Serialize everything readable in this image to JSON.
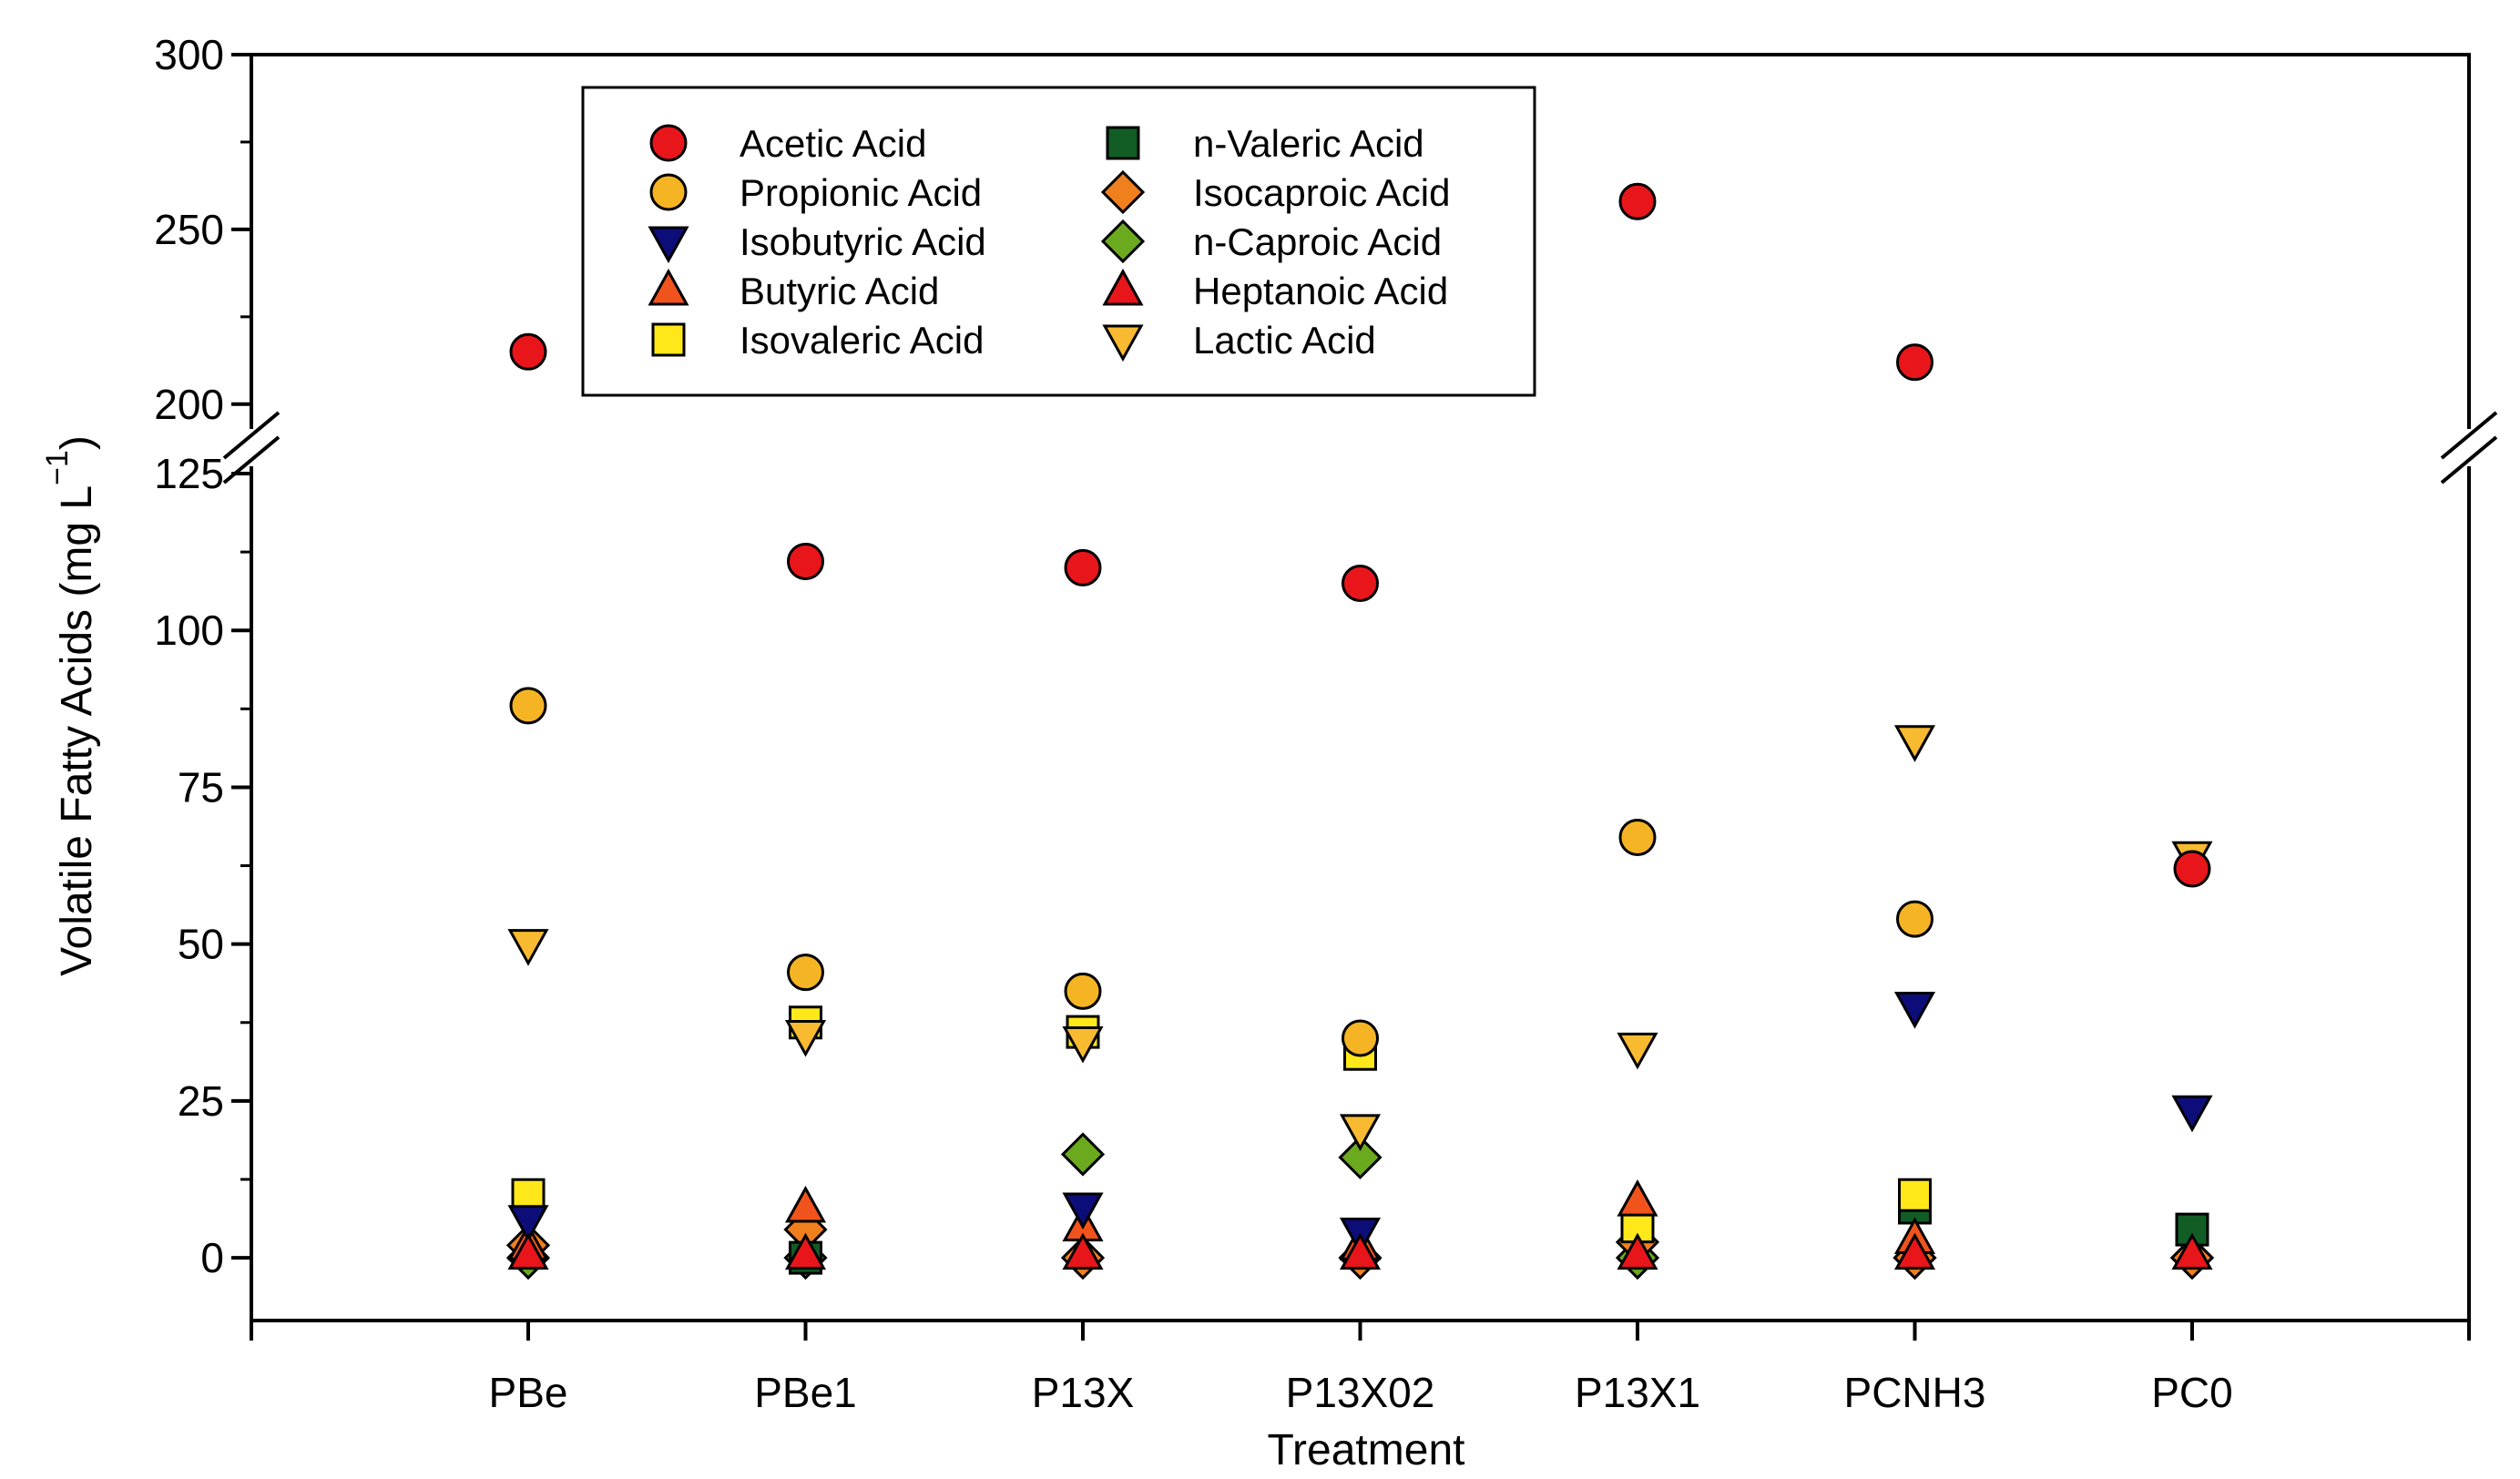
{
  "chart_data": {
    "type": "scatter",
    "title": "",
    "xlabel": "Treatment",
    "ylabel": "Volatile Fatty Acids (mg L",
    "ylabel_superscript": "−1",
    "ylabel_close": ")",
    "categories": [
      "PBe",
      "PBe1",
      "P13X",
      "P13X02",
      "P13X1",
      "PCNH3",
      "PC0"
    ],
    "y_axis_break": true,
    "y_segments": [
      {
        "range": [
          -10,
          125
        ],
        "ticks": [
          "0",
          "25",
          "50",
          "75",
          "100",
          "125"
        ],
        "tick_values": [
          0,
          25,
          50,
          75,
          100,
          125
        ]
      },
      {
        "range": [
          195,
          300
        ],
        "ticks": [
          "200",
          "250",
          "300"
        ],
        "tick_values": [
          200,
          250,
          300
        ]
      }
    ],
    "legend_position": "top-center",
    "series": [
      {
        "name": "Acetic Acid",
        "marker": "circle",
        "color": "#E8161A",
        "values": [
          215,
          111,
          110,
          107.5,
          258,
          212,
          62
        ]
      },
      {
        "name": "Propionic Acid",
        "marker": "circle",
        "color": "#F5B424",
        "values": [
          88,
          45.5,
          42.5,
          35,
          67,
          54,
          null
        ]
      },
      {
        "name": "Isobutyric Acid",
        "marker": "triangle-down",
        "color": "#0D0D7A",
        "values": [
          6,
          null,
          8,
          4,
          null,
          40,
          23.5
        ]
      },
      {
        "name": "Butyric Acid",
        "marker": "triangle-up",
        "color": "#F0541C",
        "values": [
          2,
          8,
          5,
          2,
          9,
          3,
          null
        ]
      },
      {
        "name": "Isovaleric Acid",
        "marker": "square",
        "color": "#FFE81A",
        "values": [
          10,
          37.5,
          36,
          32.5,
          5,
          10,
          null
        ]
      },
      {
        "name": "n-Valeric Acid",
        "marker": "square",
        "color": "#125C25",
        "values": [
          null,
          0,
          null,
          null,
          null,
          8,
          4.5
        ]
      },
      {
        "name": "Isocaproic Acid",
        "marker": "diamond",
        "color": "#F07F1E",
        "values": [
          2,
          4.5,
          0,
          0,
          2.5,
          0,
          0
        ]
      },
      {
        "name": "n-Caproic Acid",
        "marker": "diamond",
        "color": "#6BAA1E",
        "values": [
          0,
          0,
          16.5,
          16,
          0,
          0,
          0
        ]
      },
      {
        "name": "Heptanoic Acid",
        "marker": "triangle-up",
        "color": "#E8161A",
        "values": [
          0.5,
          0.5,
          0.5,
          0.5,
          0.5,
          0.5,
          0.5
        ]
      },
      {
        "name": "Lactic Acid",
        "marker": "triangle-down",
        "color": "#F7BA30",
        "values": [
          50,
          35.5,
          34.5,
          20.5,
          33.5,
          82.5,
          64
        ]
      }
    ]
  }
}
